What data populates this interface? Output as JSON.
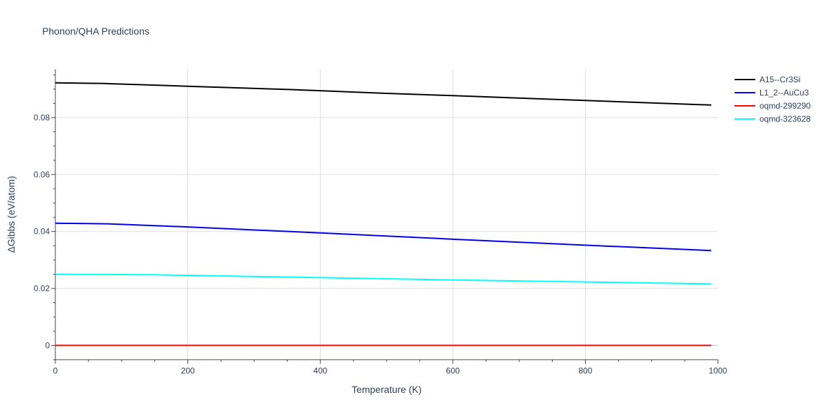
{
  "chart_data": {
    "type": "line",
    "title": "Phonon/QHA Predictions",
    "xlabel": "Temperature (K)",
    "ylabel": "ΔGibbs (eV/atom)",
    "xlim": [
      0,
      1000
    ],
    "ylim": [
      -0.005,
      0.097
    ],
    "xticks": [
      0,
      200,
      400,
      600,
      800,
      1000
    ],
    "yticks": [
      0,
      0.02,
      0.04,
      0.06,
      0.08
    ],
    "xtick_labels": [
      "0",
      "200",
      "400",
      "600",
      "800",
      "1000"
    ],
    "ytick_labels": [
      "0",
      "0.02",
      "0.04",
      "0.06",
      "0.08"
    ],
    "grid": true,
    "legend_position": "top-right",
    "series": [
      {
        "name": "A15--Cr3Si",
        "color": "#000000",
        "x": [
          0,
          70,
          200,
          360,
          500,
          600,
          800,
          990
        ],
        "y": [
          0.0922,
          0.092,
          0.091,
          0.0898,
          0.0885,
          0.0877,
          0.086,
          0.0844
        ]
      },
      {
        "name": "L1_2--AuCu3",
        "color": "#0000ee",
        "x": [
          0,
          80,
          200,
          400,
          600,
          800,
          990
        ],
        "y": [
          0.0429,
          0.0427,
          0.0416,
          0.0395,
          0.0373,
          0.0352,
          0.0333
        ]
      },
      {
        "name": "oqmd-299290",
        "color": "#ff0000",
        "x": [
          0,
          990
        ],
        "y": [
          0.0,
          0.0
        ]
      },
      {
        "name": "oqmd-323628",
        "color": "#00ffff",
        "x": [
          0,
          150,
          400,
          600,
          800,
          990
        ],
        "y": [
          0.025,
          0.0248,
          0.0238,
          0.023,
          0.0223,
          0.0216
        ]
      }
    ]
  }
}
